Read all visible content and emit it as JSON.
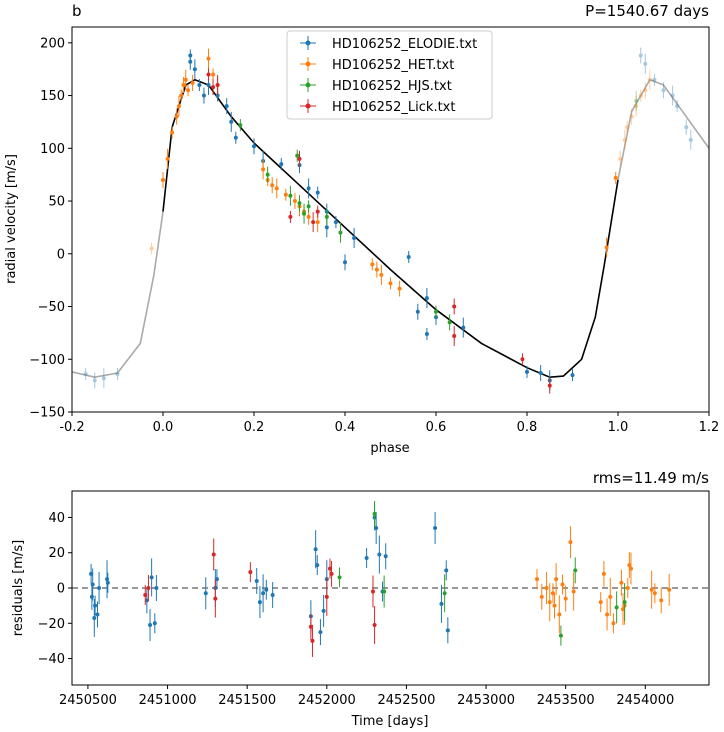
{
  "chart_data": [
    {
      "type": "scatter",
      "panel_label": "b",
      "title": "P=1540.67 days",
      "xlabel": "phase",
      "ylabel": "radial velocity [m/s]",
      "xlim": [
        -0.2,
        1.2
      ],
      "ylim": [
        -150,
        215
      ],
      "xticks": [
        "-0.2",
        "0.0",
        "0.2",
        "0.4",
        "0.6",
        "0.8",
        "1.0",
        "1.2"
      ],
      "yticks": [
        "−150",
        "−100",
        "−50",
        "0",
        "50",
        "100",
        "150",
        "200"
      ],
      "legend_position": "top-center",
      "series": [
        {
          "name": "HD106252_ELODIE.txt",
          "color": "#1f77b4",
          "points": [
            [
              0.06,
              188
            ],
            [
              0.06,
              182
            ],
            [
              0.07,
              175
            ],
            [
              0.08,
              160
            ],
            [
              0.09,
              150
            ],
            [
              0.1,
              160
            ],
            [
              0.12,
              150
            ],
            [
              0.14,
              140
            ],
            [
              0.15,
              125
            ],
            [
              0.16,
              110
            ],
            [
              0.2,
              102
            ],
            [
              0.22,
              88
            ],
            [
              0.26,
              85
            ],
            [
              0.3,
              84
            ],
            [
              0.32,
              62
            ],
            [
              0.34,
              58
            ],
            [
              0.36,
              40
            ],
            [
              0.36,
              25
            ],
            [
              0.38,
              30
            ],
            [
              0.4,
              -8
            ],
            [
              0.42,
              15
            ],
            [
              0.54,
              -3
            ],
            [
              0.56,
              -55
            ],
            [
              0.58,
              -42
            ],
            [
              0.58,
              -76
            ],
            [
              0.6,
              -60
            ],
            [
              0.66,
              -70
            ],
            [
              0.8,
              -112
            ],
            [
              0.83,
              -113
            ],
            [
              0.85,
              -120
            ],
            [
              0.9,
              -115
            ],
            [
              1.05,
              188
            ],
            [
              1.06,
              180
            ],
            [
              1.08,
              165
            ],
            [
              1.1,
              155
            ],
            [
              1.12,
              150
            ],
            [
              1.13,
              140
            ],
            [
              1.15,
              120
            ],
            [
              1.16,
              108
            ],
            [
              -0.17,
              -114
            ],
            [
              -0.15,
              -120
            ],
            [
              -0.13,
              -118
            ],
            [
              -0.1,
              -114
            ]
          ]
        },
        {
          "name": "HD106252_HET.txt",
          "color": "#ff7f0e",
          "points": [
            [
              -0.025,
              5
            ],
            [
              0.0,
              70
            ],
            [
              0.01,
              90
            ],
            [
              0.02,
              115
            ],
            [
              0.03,
              130
            ],
            [
              0.035,
              140
            ],
            [
              0.04,
              150
            ],
            [
              0.045,
              160
            ],
            [
              0.05,
              165
            ],
            [
              0.055,
              155
            ],
            [
              0.065,
              162
            ],
            [
              0.1,
              185
            ],
            [
              0.11,
              170
            ],
            [
              0.12,
              160
            ],
            [
              0.22,
              80
            ],
            [
              0.23,
              70
            ],
            [
              0.24,
              65
            ],
            [
              0.25,
              62
            ],
            [
              0.27,
              56
            ],
            [
              0.29,
              50
            ],
            [
              0.3,
              45
            ],
            [
              0.31,
              40
            ],
            [
              0.32,
              35
            ],
            [
              0.34,
              30
            ],
            [
              0.46,
              -10
            ],
            [
              0.47,
              -15
            ],
            [
              0.48,
              -20
            ],
            [
              0.5,
              -28
            ],
            [
              0.52,
              -33
            ],
            [
              0.975,
              6
            ],
            [
              0.995,
              72
            ],
            [
              1.005,
              90
            ],
            [
              1.015,
              108
            ],
            [
              1.02,
              120
            ],
            [
              1.03,
              130
            ],
            [
              1.04,
              140
            ],
            [
              1.05,
              150
            ],
            [
              1.06,
              155
            ],
            [
              1.07,
              165
            ]
          ]
        },
        {
          "name": "HD106252_HJS.txt",
          "color": "#2ca02c",
          "points": [
            [
              0.17,
              122
            ],
            [
              0.23,
              75
            ],
            [
              0.28,
              55
            ],
            [
              0.295,
              93
            ],
            [
              0.3,
              48
            ],
            [
              0.31,
              38
            ],
            [
              0.32,
              45
            ],
            [
              0.36,
              35
            ],
            [
              0.39,
              20
            ],
            [
              0.6,
              -55
            ],
            [
              0.63,
              -65
            ],
            [
              1.04,
              145
            ]
          ]
        },
        {
          "name": "HD106252_Lick.txt",
          "color": "#d62728",
          "points": [
            [
              0.1,
              170
            ],
            [
              0.11,
              158
            ],
            [
              0.12,
              160
            ],
            [
              0.28,
              35
            ],
            [
              0.3,
              90
            ],
            [
              0.33,
              30
            ],
            [
              0.34,
              40
            ],
            [
              0.64,
              -50
            ],
            [
              0.64,
              -78
            ],
            [
              0.79,
              -100
            ],
            [
              0.85,
              -125
            ]
          ]
        }
      ],
      "model_curve": "Keplerian fit (black within phase 0–1, grey outside)"
    },
    {
      "type": "scatter",
      "title": "rms=11.49 m/s",
      "xlabel": "Time [days]",
      "ylabel": "residuals [m/s]",
      "xlim": [
        2450400,
        2454400
      ],
      "ylim": [
        -55,
        55
      ],
      "xticks": [
        "2450500",
        "2451000",
        "2451500",
        "2452000",
        "2452500",
        "2453000",
        "2453500",
        "2454000"
      ],
      "yticks": [
        "−40",
        "−20",
        "0",
        "20",
        "40"
      ],
      "reference_line": 0,
      "series": [
        {
          "name": "HD106252_ELODIE.txt",
          "color": "#1f77b4",
          "points": [
            [
              2450520,
              8
            ],
            [
              2450525,
              -5
            ],
            [
              2450530,
              2
            ],
            [
              2450540,
              -17
            ],
            [
              2450545,
              -10
            ],
            [
              2450560,
              -15
            ],
            [
              2450570,
              0
            ],
            [
              2450620,
              5
            ],
            [
              2450625,
              3
            ],
            [
              2450870,
              -7
            ],
            [
              2450890,
              -21
            ],
            [
              2450900,
              6
            ],
            [
              2450920,
              -20
            ],
            [
              2450930,
              0
            ],
            [
              2451240,
              -3
            ],
            [
              2451300,
              0
            ],
            [
              2451310,
              5
            ],
            [
              2451560,
              4
            ],
            [
              2451580,
              -8
            ],
            [
              2451600,
              -3
            ],
            [
              2451620,
              -1
            ],
            [
              2451660,
              -4
            ],
            [
              2451900,
              -16
            ],
            [
              2451930,
              22
            ],
            [
              2451940,
              13
            ],
            [
              2451960,
              -25
            ],
            [
              2451980,
              -13
            ],
            [
              2452000,
              5
            ],
            [
              2452250,
              17
            ],
            [
              2452300,
              40
            ],
            [
              2452310,
              34
            ],
            [
              2452330,
              19
            ],
            [
              2452350,
              -2
            ],
            [
              2452370,
              18
            ],
            [
              2452680,
              34
            ],
            [
              2452720,
              -9
            ],
            [
              2452750,
              10
            ],
            [
              2452760,
              -24
            ]
          ]
        },
        {
          "name": "HD106252_HET.txt",
          "color": "#ff7f0e",
          "points": [
            [
              2453320,
              5
            ],
            [
              2453350,
              -5
            ],
            [
              2453380,
              0
            ],
            [
              2453400,
              -8
            ],
            [
              2453420,
              -3
            ],
            [
              2453430,
              -10
            ],
            [
              2453440,
              5
            ],
            [
              2453460,
              -15
            ],
            [
              2453480,
              2
            ],
            [
              2453500,
              -6
            ],
            [
              2453530,
              26
            ],
            [
              2453550,
              -2
            ],
            [
              2453720,
              -8
            ],
            [
              2453740,
              8
            ],
            [
              2453760,
              -15
            ],
            [
              2453780,
              -5
            ],
            [
              2453800,
              -20
            ],
            [
              2453850,
              3
            ],
            [
              2453860,
              -12
            ],
            [
              2453870,
              -10
            ],
            [
              2453890,
              0
            ],
            [
              2453900,
              13
            ],
            [
              2453910,
              11
            ],
            [
              2454040,
              -1
            ],
            [
              2454060,
              -3
            ],
            [
              2454100,
              -7
            ],
            [
              2454150,
              -1
            ]
          ]
        },
        {
          "name": "HD106252_HJS.txt",
          "color": "#2ca02c",
          "points": [
            [
              2452080,
              6
            ],
            [
              2452300,
              42
            ],
            [
              2452360,
              -2
            ],
            [
              2452740,
              -3
            ],
            [
              2453470,
              -27
            ],
            [
              2453560,
              10
            ],
            [
              2453820,
              -11
            ],
            [
              2453870,
              -8
            ]
          ]
        },
        {
          "name": "HD106252_Lick.txt",
          "color": "#d62728",
          "points": [
            [
              2450860,
              -4
            ],
            [
              2450880,
              0
            ],
            [
              2451290,
              19
            ],
            [
              2451300,
              -6
            ],
            [
              2451520,
              9
            ],
            [
              2451900,
              -22
            ],
            [
              2451910,
              -30
            ],
            [
              2452000,
              -5
            ],
            [
              2452020,
              11
            ],
            [
              2452030,
              8
            ],
            [
              2452290,
              -2
            ],
            [
              2452300,
              -21
            ]
          ]
        }
      ]
    }
  ]
}
